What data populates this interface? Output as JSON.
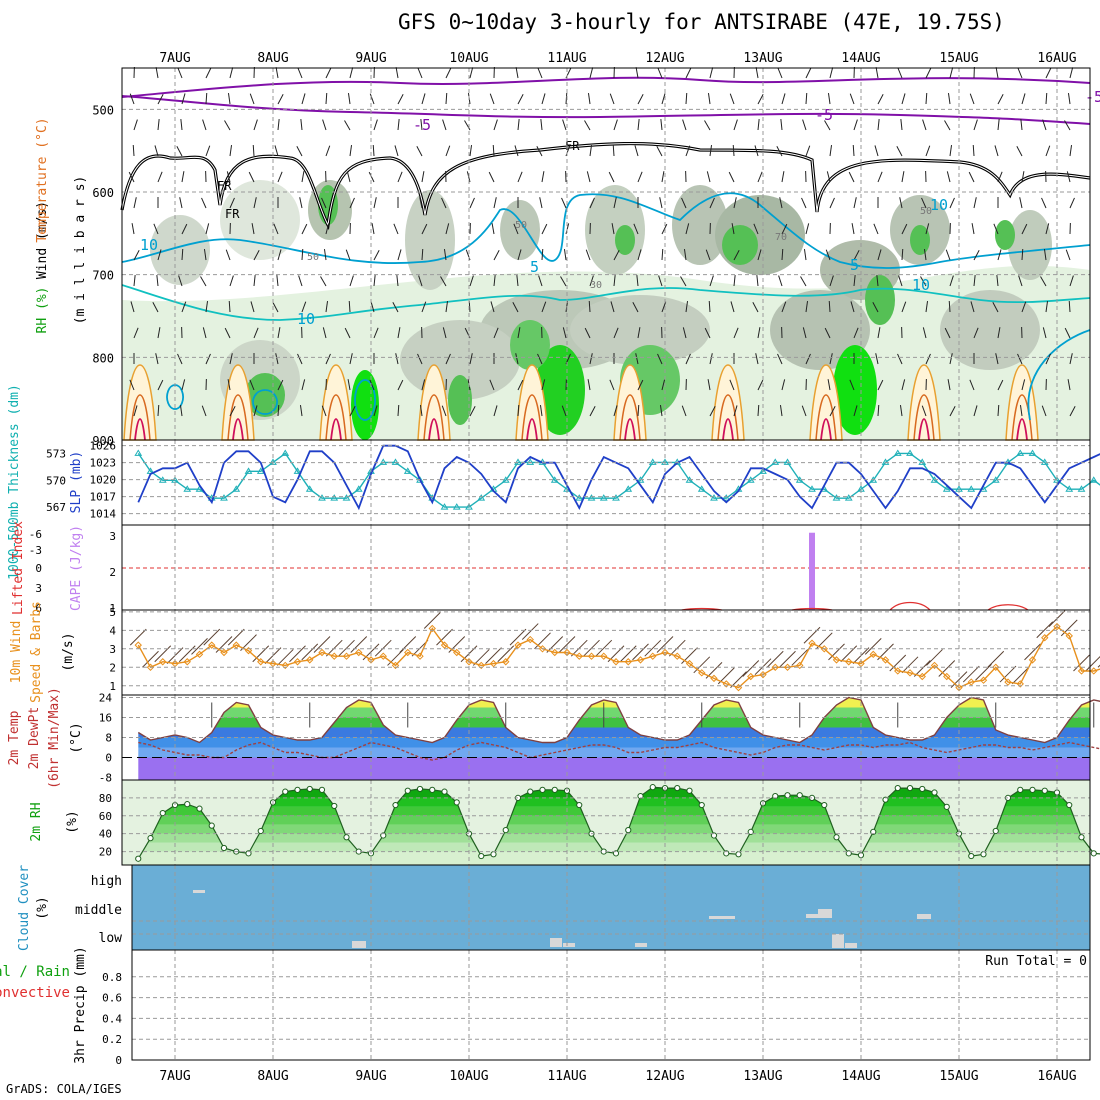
{
  "title": "GFS 0~10day 3-hourly for ANTSIRABE (47E, 19.75S)",
  "footer": "GrADS: COLA/IGES",
  "colors": {
    "grid": "#9a9a9a",
    "slp": "#1f3fc8",
    "thickness": "#1fb0b8",
    "cape": "#c080f0",
    "lifted": "#e03030",
    "wind10": "#e8901c",
    "barb": "#5a4030",
    "rh_dark": "#008800",
    "rh_light": "#30d030",
    "cloud": "#6aaed6",
    "cloud_patch": "#d8d8d8",
    "temp_purple": "#9a70f0",
    "temp_blue": "#5090e0",
    "temp_green": "#30c030",
    "temp_yellow": "#f0f050",
    "dewpt": "#a04040",
    "purple_contour": "#8010a8",
    "cyan_contour": "#00a0d0"
  },
  "chart_data": [
    {
      "type": "heatmap",
      "name": "upper-air cross section",
      "labels": {
        "wind": "Wind (m/s)",
        "temperature": "Temperature (°C)",
        "rh": "RH (%)",
        "pressure": "(m i l l i b a r s)"
      },
      "yticks": [
        500,
        600,
        700,
        800,
        900
      ],
      "ylim": [
        900,
        450
      ],
      "contour_labels": [
        "FR",
        "FR",
        "FR",
        "-5",
        "-5",
        "-5",
        "5",
        "5",
        "10",
        "10",
        "10",
        "10",
        "30",
        "50",
        "50",
        "50",
        "70"
      ]
    },
    {
      "type": "line",
      "name": "slp and thickness",
      "labels": {
        "thickness": "1000-500mb Thickness (dm)",
        "slp": "SLP (mb)"
      },
      "left_ticks": [
        "573",
        "570",
        "567"
      ],
      "right_ticks": [
        "1026",
        "1023",
        "1020",
        "1017",
        "1014"
      ],
      "series": [
        {
          "name": "SLP",
          "values": [
            1016,
            1021,
            1022,
            1022,
            1023,
            1019,
            1016,
            1023,
            1025,
            1025,
            1023,
            1017,
            1016,
            1020,
            1025,
            1025,
            1023,
            1019,
            1015,
            1021,
            1026,
            1026,
            1025,
            1020,
            1016,
            1022,
            1024,
            1023,
            1021,
            1018,
            1016,
            1022,
            1024,
            1023,
            1023,
            1019,
            1015,
            1020,
            1024,
            1023,
            1022,
            1019,
            1016,
            1021,
            1023,
            1024,
            1021,
            1018,
            1016,
            1018,
            1022,
            1022,
            1021,
            1020,
            1017,
            1015,
            1019,
            1023,
            1023,
            1021,
            1018,
            1015,
            1018,
            1022,
            1022,
            1021,
            1019,
            1017,
            1015,
            1019,
            1023,
            1023,
            1022,
            1019,
            1016,
            1019,
            1022,
            1023,
            1024,
            1025,
            1024,
            1024
          ]
        },
        {
          "name": "Thickness",
          "values": [
            573,
            571,
            570,
            570,
            569,
            569,
            568,
            568,
            569,
            571,
            571,
            572,
            573,
            571,
            569,
            568,
            568,
            568,
            569,
            571,
            572,
            572,
            571,
            570,
            568,
            567,
            567,
            567,
            568,
            569,
            570,
            572,
            572,
            572,
            570,
            569,
            568,
            568,
            568,
            568,
            569,
            570,
            572,
            572,
            572,
            570,
            569,
            568,
            568,
            569,
            570,
            571,
            572,
            572,
            570,
            569,
            569,
            568,
            568,
            569,
            570,
            572,
            573,
            573,
            572,
            570,
            569,
            569,
            569,
            569,
            570,
            572,
            573,
            573,
            572,
            570,
            569,
            569,
            570,
            569,
            567,
            569
          ]
        }
      ]
    },
    {
      "type": "bar",
      "name": "lifted index and cape",
      "labels": {
        "lifted": "Lifted Index",
        "cape": "CAPE (J/kg)"
      },
      "left_ticks": [
        "-6",
        "-3",
        "0",
        "3",
        "6"
      ],
      "right_ticks": [
        "3",
        "2",
        "1"
      ],
      "cape": [
        {
          "x": 55,
          "value": 3.0
        }
      ],
      "lifted_bumps": [
        {
          "x": 46,
          "value": 5.8
        },
        {
          "x": 55,
          "value": 5.8
        },
        {
          "x": 63,
          "value": 5.0
        },
        {
          "x": 71,
          "value": 5.3
        }
      ]
    },
    {
      "type": "line",
      "name": "10m wind",
      "labels": {
        "main": "10m Wind",
        "sub": "Speed & Barbs",
        "unit": "(m/s)"
      },
      "yticks": [
        "5",
        "4",
        "3",
        "2",
        "1"
      ],
      "values": [
        3.2,
        2.0,
        2.3,
        2.2,
        2.3,
        2.7,
        3.2,
        2.8,
        3.2,
        2.9,
        2.3,
        2.2,
        2.1,
        2.3,
        2.4,
        2.8,
        2.6,
        2.6,
        2.8,
        2.4,
        2.6,
        2.1,
        2.8,
        2.6,
        4.1,
        3.2,
        2.8,
        2.3,
        2.1,
        2.2,
        2.3,
        3.2,
        3.5,
        3.0,
        2.8,
        2.8,
        2.6,
        2.6,
        2.6,
        2.3,
        2.3,
        2.4,
        2.6,
        2.8,
        2.6,
        2.2,
        1.7,
        1.4,
        1.1,
        0.9,
        1.5,
        1.6,
        2.0,
        2.0,
        2.1,
        3.3,
        3.0,
        2.4,
        2.3,
        2.2,
        2.7,
        2.4,
        1.8,
        1.7,
        1.5,
        2.1,
        1.5,
        0.9,
        1.2,
        1.3,
        2.0,
        1.2,
        1.1,
        2.4,
        3.6,
        4.2,
        3.7,
        1.8,
        1.8,
        2.0,
        2.7,
        4.6
      ]
    },
    {
      "type": "area",
      "name": "2m temperature",
      "labels": {
        "a": "2m Temp",
        "b": "2m DewPt",
        "c": "(6hr Min/Max)",
        "unit": "(°C)"
      },
      "yticks": [
        "24",
        "16",
        "8",
        "0",
        "-8"
      ],
      "ylim": [
        -8,
        24
      ],
      "temp": [
        10,
        7,
        8,
        9,
        8,
        6,
        10,
        18,
        22,
        21,
        12,
        9,
        8,
        7,
        7,
        8,
        14,
        20,
        23,
        22,
        13,
        9,
        8,
        7,
        6,
        8,
        15,
        21,
        23,
        22,
        12,
        8,
        7,
        6,
        6,
        8,
        15,
        21,
        23,
        22,
        12,
        9,
        8,
        7,
        7,
        9,
        15,
        21,
        23,
        22,
        12,
        9,
        8,
        7,
        6,
        9,
        16,
        21,
        24,
        23,
        12,
        9,
        8,
        7,
        7,
        9,
        16,
        21,
        24,
        23,
        11,
        9,
        8,
        7,
        6,
        8,
        15,
        21,
        23,
        22,
        10,
        7,
        5,
        13
      ],
      "dewpt": [
        6,
        5,
        3,
        2,
        1,
        1,
        0,
        0,
        3,
        5,
        6,
        4,
        2,
        2,
        1,
        0,
        0,
        2,
        4,
        6,
        5,
        4,
        2,
        0,
        -1,
        0,
        3,
        5,
        6,
        5,
        4,
        2,
        0,
        1,
        2,
        3,
        4,
        5,
        5,
        4,
        2,
        2,
        3,
        4,
        4,
        5,
        6,
        4,
        3,
        2,
        1,
        2,
        4,
        5,
        5,
        4,
        3,
        4,
        5,
        5,
        4,
        5,
        5,
        6,
        4,
        3,
        2,
        3,
        4,
        5,
        5,
        4,
        4,
        3,
        4,
        5,
        6,
        5,
        4,
        3,
        4
      ]
    },
    {
      "type": "area",
      "name": "2m rh",
      "labels": {
        "a": "2m RH",
        "unit": "(%)"
      },
      "yticks": [
        "80",
        "60",
        "40",
        "20"
      ],
      "ylim": [
        5,
        100
      ],
      "values": [
        12,
        35,
        63,
        72,
        73,
        68,
        49,
        24,
        20,
        18,
        43,
        75,
        87,
        89,
        90,
        89,
        71,
        36,
        20,
        18,
        38,
        72,
        88,
        90,
        89,
        87,
        75,
        40,
        15,
        17,
        44,
        80,
        87,
        89,
        89,
        88,
        72,
        40,
        20,
        18,
        44,
        82,
        92,
        91,
        91,
        88,
        72,
        38,
        18,
        17,
        42,
        74,
        82,
        83,
        83,
        80,
        72,
        36,
        18,
        16,
        42,
        78,
        91,
        91,
        90,
        86,
        70,
        40,
        15,
        17,
        43,
        80,
        89,
        89,
        88,
        86,
        72,
        36,
        18,
        17,
        44,
        87,
        90
      ]
    },
    {
      "type": "heatmap",
      "name": "cloud cover",
      "labels": {
        "a": "Cloud Cover",
        "unit": "(%)"
      },
      "levels": [
        "high",
        "middle",
        "low"
      ]
    },
    {
      "type": "bar",
      "name": "precipitation",
      "labels": {
        "a": "3hr Precip (mm)",
        "total": "Total / Rain",
        "conv": "Convective",
        "run_total": "Run Total = 0"
      },
      "yticks": [
        "0.8",
        "0.6",
        "0.4",
        "0.2",
        "0"
      ],
      "ylim": [
        0,
        1
      ],
      "values": []
    }
  ],
  "dates": [
    "7AUG",
    "8AUG",
    "9AUG",
    "10AUG",
    "11AUG",
    "12AUG",
    "13AUG",
    "14AUG",
    "15AUG",
    "16AUG"
  ]
}
